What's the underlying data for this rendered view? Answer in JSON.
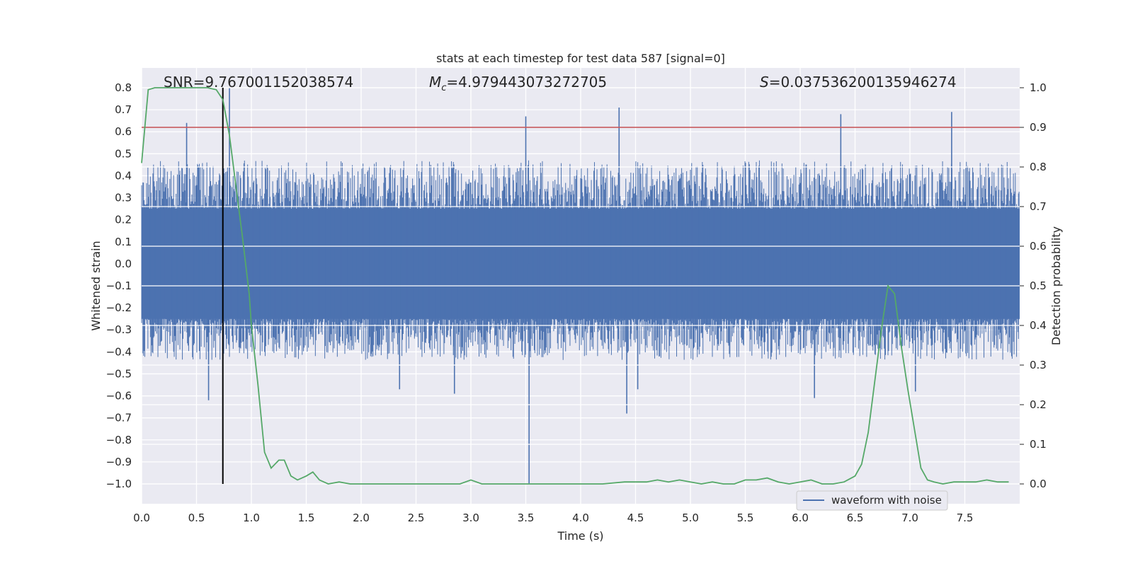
{
  "chart_data": {
    "type": "line",
    "title": "stats at each timestep for test data 587 [signal=0]",
    "xlabel": "Time (s)",
    "ylabel_left": "Whitened strain",
    "ylabel_right": "Detection probability",
    "xlim": [
      0.0,
      8.0
    ],
    "ylim_left": [
      -1.09,
      0.89
    ],
    "ylim_right": [
      -0.05,
      1.05
    ],
    "xticks": [
      "0.0",
      "0.5",
      "1.0",
      "1.5",
      "2.0",
      "2.5",
      "3.0",
      "3.5",
      "4.0",
      "4.5",
      "5.0",
      "5.5",
      "6.0",
      "6.5",
      "7.0",
      "7.5"
    ],
    "yticks_left": [
      "0.8",
      "0.7",
      "0.6",
      "0.5",
      "0.4",
      "0.3",
      "0.2",
      "0.1",
      "0.0",
      "−0.1",
      "−0.2",
      "−0.3",
      "−0.4",
      "−0.5",
      "−0.6",
      "−0.7",
      "−0.8",
      "−0.9",
      "−1.0"
    ],
    "yticks_right": [
      "1.0",
      "0.9",
      "0.8",
      "0.7",
      "0.6",
      "0.5",
      "0.4",
      "0.3",
      "0.2",
      "0.1",
      "0.0"
    ],
    "grid": true,
    "legend": {
      "position": "lower-right",
      "entries": [
        "waveform with noise"
      ]
    },
    "annotations": {
      "snr_label": "SNR",
      "snr_value": "=9.767001152038574",
      "mc_symbol": "M",
      "mc_sub": "c",
      "mc_value": "=4.979443073272705",
      "s_symbol": "S",
      "s_value": "=0.037536200135946274"
    },
    "threshold": {
      "value": 0.9,
      "axis": "right",
      "color": "#c44e52"
    },
    "event_marker": {
      "x": 0.74,
      "y_range": [
        -1.0,
        0.8
      ],
      "color": "#000000"
    },
    "series": [
      {
        "name": "waveform with noise",
        "axis": "left",
        "color": "#4c72b0",
        "envelope": {
          "core_band": [
            -0.25,
            0.25
          ],
          "typical_peak": [
            -0.42,
            0.45
          ],
          "spikes": [
            {
              "x": 0.8,
              "y": 0.8
            },
            {
              "x": 0.41,
              "y": 0.64
            },
            {
              "x": 0.61,
              "y": -0.62
            },
            {
              "x": 3.5,
              "y": 0.67
            },
            {
              "x": 3.53,
              "y": -1.0
            },
            {
              "x": 4.35,
              "y": 0.71
            },
            {
              "x": 4.42,
              "y": -0.68
            },
            {
              "x": 6.37,
              "y": 0.68
            },
            {
              "x": 7.38,
              "y": 0.69
            },
            {
              "x": 2.85,
              "y": -0.59
            },
            {
              "x": 6.13,
              "y": -0.61
            },
            {
              "x": 2.35,
              "y": -0.57
            },
            {
              "x": 4.52,
              "y": -0.57
            },
            {
              "x": 7.05,
              "y": -0.58
            }
          ]
        }
      },
      {
        "name": "",
        "axis": "right",
        "color": "#55a868",
        "x": [
          0.0,
          0.06,
          0.12,
          0.2,
          0.3,
          0.4,
          0.5,
          0.6,
          0.68,
          0.74,
          0.8,
          0.86,
          0.92,
          0.98,
          1.0,
          1.06,
          1.12,
          1.18,
          1.25,
          1.3,
          1.36,
          1.42,
          1.5,
          1.56,
          1.62,
          1.7,
          1.8,
          1.9,
          2.0,
          2.2,
          2.4,
          2.6,
          2.8,
          2.9,
          3.0,
          3.1,
          3.2,
          3.4,
          3.6,
          3.8,
          4.0,
          4.2,
          4.4,
          4.6,
          4.7,
          4.8,
          4.9,
          5.0,
          5.1,
          5.2,
          5.3,
          5.4,
          5.5,
          5.6,
          5.7,
          5.8,
          5.9,
          6.0,
          6.1,
          6.2,
          6.3,
          6.4,
          6.5,
          6.56,
          6.62,
          6.68,
          6.74,
          6.8,
          6.86,
          6.92,
          6.98,
          7.04,
          7.1,
          7.16,
          7.22,
          7.3,
          7.4,
          7.5,
          7.6,
          7.7,
          7.8,
          7.9
        ],
        "values": [
          0.81,
          0.995,
          1.0,
          1.0,
          1.0,
          1.0,
          1.0,
          1.0,
          0.995,
          0.97,
          0.88,
          0.75,
          0.62,
          0.48,
          0.4,
          0.25,
          0.08,
          0.04,
          0.06,
          0.06,
          0.02,
          0.01,
          0.02,
          0.03,
          0.01,
          0.0,
          0.005,
          0.0,
          0.0,
          0.0,
          0.0,
          0.0,
          0.0,
          0.0,
          0.01,
          0.0,
          0.0,
          0.0,
          0.0,
          0.0,
          0.0,
          0.0,
          0.005,
          0.005,
          0.01,
          0.005,
          0.01,
          0.005,
          0.0,
          0.005,
          0.0,
          0.0,
          0.01,
          0.01,
          0.015,
          0.005,
          0.0,
          0.005,
          0.01,
          0.0,
          0.0,
          0.005,
          0.02,
          0.05,
          0.13,
          0.26,
          0.39,
          0.5,
          0.48,
          0.35,
          0.24,
          0.14,
          0.04,
          0.01,
          0.005,
          0.0,
          0.005,
          0.005,
          0.005,
          0.01,
          0.005,
          0.005
        ]
      }
    ]
  }
}
